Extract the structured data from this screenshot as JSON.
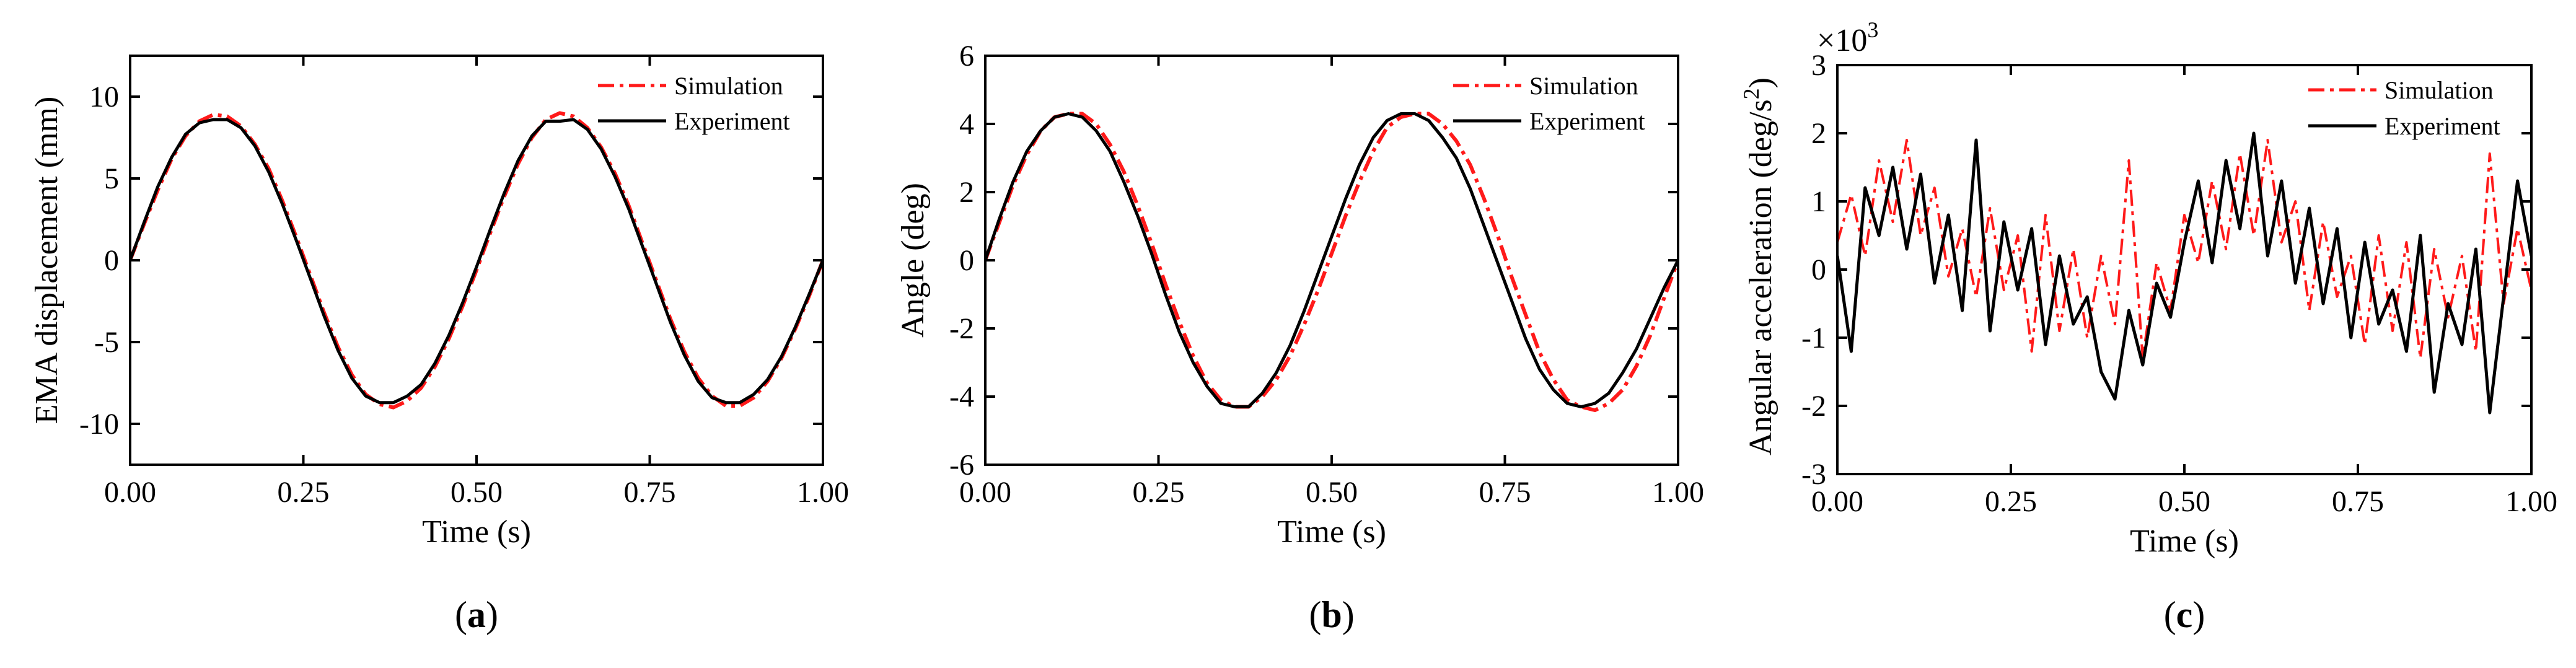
{
  "colors": {
    "simulation": "#ff1a1a",
    "experiment": "#000000",
    "axis": "#000000",
    "background": "#ffffff"
  },
  "chart_data": [
    {
      "id": "a",
      "type": "line",
      "caption_label": "a",
      "caption_open": "(",
      "caption_close": ")",
      "xlabel": "Time (s)",
      "ylabel": "EMA displacement (mm)",
      "xlim": [
        0,
        1
      ],
      "ylim": [
        -12.5,
        12.5
      ],
      "x_ticks": [
        0,
        0.25,
        0.5,
        0.75,
        1
      ],
      "x_tick_labels": [
        "0.00",
        "0.25",
        "0.50",
        "0.75",
        "1.00"
      ],
      "y_ticks": [
        -10,
        -5,
        0,
        5,
        10
      ],
      "y_tick_labels": [
        "-10",
        "-5",
        "0",
        "5",
        "10"
      ],
      "legend": [
        "Simulation",
        "Experiment"
      ],
      "legend_position": "top-right",
      "series": [
        {
          "name": "Simulation",
          "style": "dashdot",
          "x": [
            0.0,
            0.02,
            0.04,
            0.06,
            0.08,
            0.1,
            0.12,
            0.14,
            0.16,
            0.18,
            0.2,
            0.22,
            0.24,
            0.26,
            0.28,
            0.3,
            0.32,
            0.34,
            0.36,
            0.38,
            0.4,
            0.42,
            0.44,
            0.46,
            0.48,
            0.5,
            0.52,
            0.54,
            0.56,
            0.58,
            0.6,
            0.62,
            0.64,
            0.66,
            0.68,
            0.7,
            0.72,
            0.74,
            0.76,
            0.78,
            0.8,
            0.82,
            0.84,
            0.86,
            0.88,
            0.9,
            0.92,
            0.94,
            0.96,
            0.98,
            1.0
          ],
          "y": [
            0.0,
            2.2,
            4.3,
            6.2,
            7.6,
            8.5,
            8.9,
            8.8,
            8.2,
            7.1,
            5.6,
            3.6,
            1.4,
            -0.9,
            -3.2,
            -5.3,
            -7.0,
            -8.2,
            -8.8,
            -9.0,
            -8.6,
            -7.8,
            -6.5,
            -4.8,
            -2.8,
            -0.6,
            1.7,
            3.9,
            5.9,
            7.5,
            8.6,
            9.0,
            8.8,
            8.1,
            6.9,
            5.3,
            3.3,
            1.0,
            -1.3,
            -3.6,
            -5.6,
            -7.2,
            -8.3,
            -8.9,
            -8.9,
            -8.4,
            -7.4,
            -6.0,
            -4.2,
            -2.2,
            0.0
          ]
        },
        {
          "name": "Experiment",
          "style": "solid",
          "x": [
            0.0,
            0.02,
            0.04,
            0.06,
            0.08,
            0.1,
            0.12,
            0.14,
            0.16,
            0.18,
            0.2,
            0.22,
            0.24,
            0.26,
            0.28,
            0.3,
            0.32,
            0.34,
            0.36,
            0.38,
            0.4,
            0.42,
            0.44,
            0.46,
            0.48,
            0.5,
            0.52,
            0.54,
            0.56,
            0.58,
            0.6,
            0.62,
            0.64,
            0.66,
            0.68,
            0.7,
            0.72,
            0.74,
            0.76,
            0.78,
            0.8,
            0.82,
            0.84,
            0.86,
            0.88,
            0.9,
            0.92,
            0.94,
            0.96,
            0.98,
            1.0
          ],
          "y": [
            0.0,
            2.3,
            4.5,
            6.3,
            7.7,
            8.4,
            8.6,
            8.6,
            8.1,
            7.0,
            5.4,
            3.4,
            1.2,
            -1.1,
            -3.4,
            -5.5,
            -7.2,
            -8.3,
            -8.7,
            -8.7,
            -8.3,
            -7.6,
            -6.3,
            -4.6,
            -2.6,
            -0.4,
            1.9,
            4.1,
            6.1,
            7.6,
            8.5,
            8.5,
            8.6,
            8.0,
            6.8,
            5.1,
            3.1,
            0.8,
            -1.5,
            -3.8,
            -5.8,
            -7.4,
            -8.4,
            -8.7,
            -8.7,
            -8.2,
            -7.3,
            -5.9,
            -4.1,
            -2.1,
            0.0
          ]
        }
      ]
    },
    {
      "id": "b",
      "type": "line",
      "caption_label": "b",
      "caption_open": "(",
      "caption_close": ")",
      "xlabel": "Time (s)",
      "ylabel": "Angle (deg)",
      "xlim": [
        0,
        1
      ],
      "ylim": [
        -6,
        6
      ],
      "x_ticks": [
        0,
        0.25,
        0.5,
        0.75,
        1
      ],
      "x_tick_labels": [
        "0.00",
        "0.25",
        "0.50",
        "0.75",
        "1.00"
      ],
      "y_ticks": [
        -6,
        -4,
        -2,
        0,
        2,
        4,
        6
      ],
      "y_tick_labels": [
        "-6",
        "-4",
        "-2",
        "0",
        "2",
        "4",
        "6"
      ],
      "legend": [
        "Simulation",
        "Experiment"
      ],
      "legend_position": "top-right",
      "series": [
        {
          "name": "Simulation",
          "style": "dashdot",
          "x": [
            0.0,
            0.02,
            0.04,
            0.06,
            0.08,
            0.1,
            0.12,
            0.14,
            0.16,
            0.18,
            0.2,
            0.22,
            0.24,
            0.26,
            0.28,
            0.3,
            0.32,
            0.34,
            0.36,
            0.38,
            0.4,
            0.42,
            0.44,
            0.46,
            0.48,
            0.5,
            0.52,
            0.54,
            0.56,
            0.58,
            0.6,
            0.62,
            0.64,
            0.66,
            0.68,
            0.7,
            0.72,
            0.74,
            0.76,
            0.78,
            0.8,
            0.82,
            0.84,
            0.86,
            0.88,
            0.9,
            0.92,
            0.94,
            0.96,
            0.98,
            1.0
          ],
          "y": [
            0.0,
            1.1,
            2.2,
            3.1,
            3.8,
            4.2,
            4.3,
            4.3,
            4.0,
            3.4,
            2.6,
            1.6,
            0.5,
            -0.7,
            -1.8,
            -2.8,
            -3.6,
            -4.1,
            -4.3,
            -4.3,
            -4.0,
            -3.5,
            -2.8,
            -1.9,
            -0.9,
            0.2,
            1.3,
            2.3,
            3.2,
            3.9,
            4.2,
            4.3,
            4.3,
            4.0,
            3.5,
            2.8,
            1.8,
            0.7,
            -0.5,
            -1.6,
            -2.7,
            -3.5,
            -4.1,
            -4.3,
            -4.4,
            -4.2,
            -3.8,
            -3.1,
            -2.2,
            -1.1,
            0.0
          ]
        },
        {
          "name": "Experiment",
          "style": "solid",
          "x": [
            0.0,
            0.02,
            0.04,
            0.06,
            0.08,
            0.1,
            0.12,
            0.14,
            0.16,
            0.18,
            0.2,
            0.22,
            0.24,
            0.26,
            0.28,
            0.3,
            0.32,
            0.34,
            0.36,
            0.38,
            0.4,
            0.42,
            0.44,
            0.46,
            0.48,
            0.5,
            0.52,
            0.54,
            0.56,
            0.58,
            0.6,
            0.62,
            0.64,
            0.66,
            0.68,
            0.7,
            0.72,
            0.74,
            0.76,
            0.78,
            0.8,
            0.82,
            0.84,
            0.86,
            0.88,
            0.9,
            0.92,
            0.94,
            0.96,
            0.98,
            1.0
          ],
          "y": [
            0.0,
            1.2,
            2.3,
            3.2,
            3.8,
            4.2,
            4.3,
            4.2,
            3.8,
            3.2,
            2.3,
            1.3,
            0.2,
            -1.0,
            -2.1,
            -3.0,
            -3.7,
            -4.2,
            -4.3,
            -4.3,
            -3.9,
            -3.3,
            -2.5,
            -1.5,
            -0.4,
            0.7,
            1.8,
            2.8,
            3.6,
            4.1,
            4.3,
            4.3,
            4.1,
            3.6,
            3.0,
            2.1,
            1.0,
            -0.1,
            -1.2,
            -2.3,
            -3.2,
            -3.8,
            -4.2,
            -4.3,
            -4.2,
            -3.9,
            -3.3,
            -2.6,
            -1.7,
            -0.8,
            0.0
          ]
        }
      ]
    },
    {
      "id": "c",
      "type": "line",
      "caption_label": "c",
      "caption_open": "(",
      "caption_close": ")",
      "xlabel": "Time (s)",
      "ylabel": "Angular acceleration (deg/s",
      "ylabel_superscript": "2",
      "ylabel_suffix": ")",
      "y_multiplier_base": "×10",
      "y_multiplier_exponent": "3",
      "xlim": [
        0,
        1
      ],
      "ylim": [
        -3,
        3
      ],
      "x_ticks": [
        0,
        0.25,
        0.5,
        0.75,
        1
      ],
      "x_tick_labels": [
        "0.00",
        "0.25",
        "0.50",
        "0.75",
        "1.00"
      ],
      "y_ticks": [
        -3,
        -2,
        -1,
        0,
        1,
        2,
        3
      ],
      "y_tick_labels": [
        "-3",
        "-2",
        "-1",
        "0",
        "1",
        "2",
        "3"
      ],
      "legend": [
        "Simulation",
        "Experiment"
      ],
      "legend_position": "top-right",
      "series": [
        {
          "name": "Simulation",
          "style": "dashdot",
          "x": [
            0.0,
            0.02,
            0.04,
            0.06,
            0.08,
            0.1,
            0.12,
            0.14,
            0.16,
            0.18,
            0.2,
            0.22,
            0.24,
            0.26,
            0.28,
            0.3,
            0.32,
            0.34,
            0.36,
            0.38,
            0.4,
            0.42,
            0.44,
            0.46,
            0.48,
            0.5,
            0.52,
            0.54,
            0.56,
            0.58,
            0.6,
            0.62,
            0.64,
            0.66,
            0.68,
            0.7,
            0.72,
            0.74,
            0.76,
            0.78,
            0.8,
            0.82,
            0.84,
            0.86,
            0.88,
            0.9,
            0.92,
            0.94,
            0.96,
            0.98,
            1.0
          ],
          "y": [
            0.4,
            1.1,
            0.2,
            1.6,
            0.7,
            1.9,
            0.5,
            1.2,
            -0.1,
            0.6,
            -0.4,
            0.9,
            -0.3,
            0.5,
            -1.2,
            0.8,
            -0.9,
            0.3,
            -1.0,
            0.2,
            -0.8,
            1.6,
            -1.3,
            0.1,
            -0.6,
            0.8,
            0.1,
            1.3,
            0.3,
            1.7,
            0.5,
            1.9,
            0.4,
            1.0,
            -0.6,
            0.7,
            -0.4,
            0.2,
            -1.1,
            0.5,
            -0.9,
            0.4,
            -1.3,
            0.3,
            -0.7,
            0.2,
            -1.2,
            1.7,
            -0.5,
            0.6,
            -0.3
          ]
        },
        {
          "name": "Experiment",
          "style": "solid",
          "x": [
            0.0,
            0.02,
            0.04,
            0.06,
            0.08,
            0.1,
            0.12,
            0.14,
            0.16,
            0.18,
            0.2,
            0.22,
            0.24,
            0.26,
            0.28,
            0.3,
            0.32,
            0.34,
            0.36,
            0.38,
            0.4,
            0.42,
            0.44,
            0.46,
            0.48,
            0.5,
            0.52,
            0.54,
            0.56,
            0.58,
            0.6,
            0.62,
            0.64,
            0.66,
            0.68,
            0.7,
            0.72,
            0.74,
            0.76,
            0.78,
            0.8,
            0.82,
            0.84,
            0.86,
            0.88,
            0.9,
            0.92,
            0.94,
            0.96,
            0.98,
            1.0
          ],
          "y": [
            0.2,
            -1.2,
            1.2,
            0.5,
            1.5,
            0.3,
            1.4,
            -0.2,
            0.8,
            -0.6,
            1.9,
            -0.9,
            0.7,
            -0.3,
            0.6,
            -1.1,
            0.2,
            -0.8,
            -0.4,
            -1.5,
            -1.9,
            -0.6,
            -1.4,
            -0.2,
            -0.7,
            0.4,
            1.3,
            0.1,
            1.6,
            0.6,
            2.0,
            0.2,
            1.3,
            -0.2,
            0.9,
            -0.5,
            0.6,
            -1.0,
            0.4,
            -0.8,
            -0.3,
            -1.2,
            0.5,
            -1.8,
            -0.5,
            -1.1,
            0.3,
            -2.1,
            -0.4,
            1.3,
            0.2
          ]
        }
      ]
    }
  ]
}
